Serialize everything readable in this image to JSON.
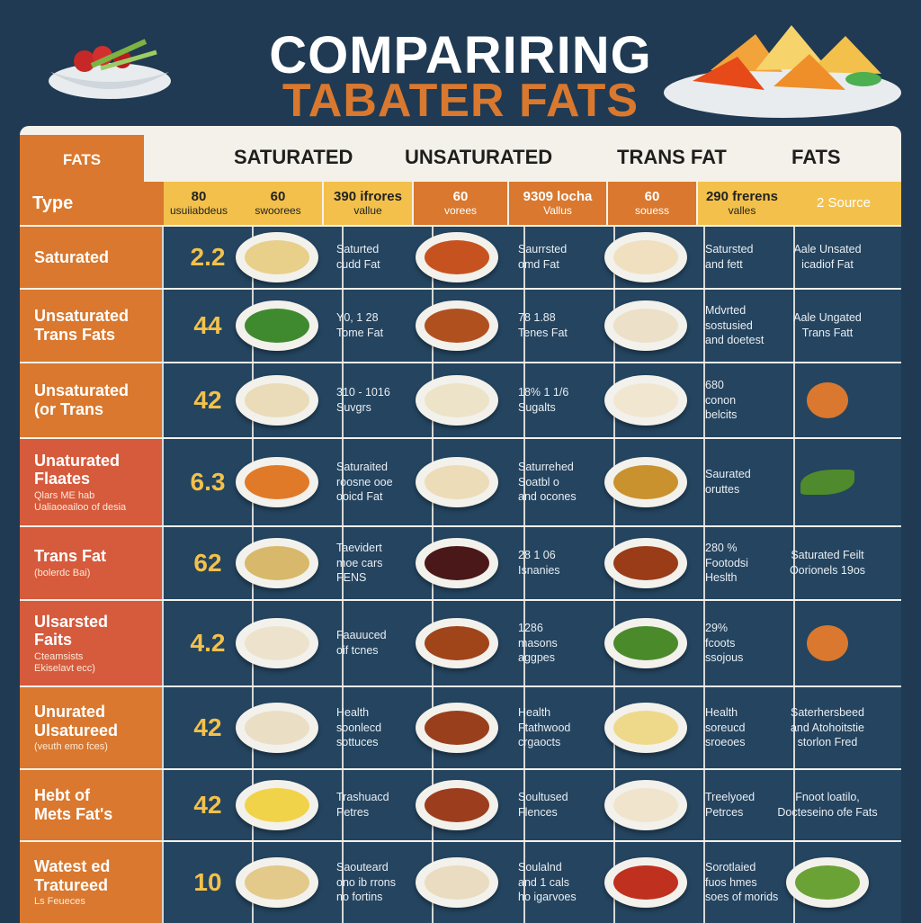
{
  "title": {
    "line1": "COMPARIRING",
    "line2": "TABATER FATS"
  },
  "header": {
    "fats_tab": "FATS",
    "columns": [
      "SATURATED",
      "UNSATURATED",
      "TRANS FAT",
      "FATS"
    ],
    "type_label": "Type",
    "sub": [
      {
        "n": "80",
        "t": "usuiiabdeus"
      },
      {
        "n": "60",
        "t": "swoorees"
      },
      {
        "n": "390 ifrores",
        "t": "vallue"
      },
      {
        "n": "60",
        "t": "vorees"
      },
      {
        "n": "9309 locha",
        "t": "Vallus"
      },
      {
        "n": "60",
        "t": "souess"
      },
      {
        "n": "290 frerens",
        "t": "valles"
      },
      {
        "n": "",
        "t": "2 Source"
      }
    ]
  },
  "colors": {
    "background": "#1f3a52",
    "orange": "#d9782e",
    "red_orange": "#d65a3c",
    "yellow": "#f3c14b",
    "row": "#24445f"
  },
  "rows": [
    {
      "label": "Saturated",
      "sub": "",
      "value": "2.2",
      "c1": "Saturted\ncudd Fat",
      "c2": "Saurrsted\nomd Fat",
      "c3": "Satursted\nand fett",
      "src": "Aale Unsated\nicadiof Fat",
      "color": "#d9782e"
    },
    {
      "label": "Unsaturated\nTrans Fats",
      "sub": "",
      "value": "44",
      "c1": "Y0, 1 28\nTome Fat",
      "c2": "78 1.88\nTenes Fat",
      "c3": "Mdvrted\nsostusied\nand doetest",
      "src": "Aale Ungated\nTrans Fatt",
      "color": "#d9782e"
    },
    {
      "label": "Unsaturated\n(or Trans",
      "sub": "",
      "value": "42",
      "c1": "310 - 1016\nSuvgrs",
      "c2": "18% 1 1/6\nSugalts",
      "c3": "680\nconon\nbelcits",
      "src": "",
      "color": "#d9782e"
    },
    {
      "label": "Unaturated\nFlaates",
      "sub": "Qlars ME hab\nUaliaoeailoo of desia",
      "value": "6.3",
      "c1": "Saturaited\nroosne ooe\nooicd Fat",
      "c2": "Saturrehed\nSoatbl o\nand ocones",
      "c3": "Saurated\noruttes",
      "src": "",
      "color": "#d65a3c"
    },
    {
      "label": "Trans Fat",
      "sub": "(bolerdc Bai)",
      "value": "62",
      "c1": "Taevidert\nmoe cars\nFENS",
      "c2": "28 1 06\nIsnanies",
      "c3": "280 %\nFootodsi\nHeslth",
      "src": "Saturated Feilt\nOorionels 19os",
      "color": "#d65a3c"
    },
    {
      "label": "Ulsarsted\nFaits",
      "sub": "Cteamsists\nEkiselavt ecc)",
      "value": "4.2",
      "c1": "Faauuced\noif tcnes",
      "c2": "1286\nmasons\naggpes",
      "c3": "29%\nfcoots\nssojous",
      "src": "",
      "color": "#d65a3c"
    },
    {
      "label": "Unurated\nUlsatureed",
      "sub": "(veuth emo fces)",
      "value": "42",
      "c1": "Health\nsoonlecd\nsottuces",
      "c2": "Health\nFtathwood\ncrgaocts",
      "c3": "Health\nsoreucd\nsroeoes",
      "src": "Saterhersbeed\nand Atohoitstie\nstorlon Fred",
      "color": "#d9782e"
    },
    {
      "label": "Hebt of\nMets Fat's",
      "sub": "",
      "value": "42",
      "c1": "Trashuacd\nPetres",
      "c2": "Soultused\nFlences",
      "c3": "Treelyoed\nPetrces",
      "src": "Fnoot loatilo,\nDocteseino ofe Fats",
      "color": "#d9782e"
    },
    {
      "label": "Watest ed\nTratureed",
      "sub": "Ls Feueces",
      "value": "10",
      "c1": "Saouteard\nono ib rrons\nno fortins",
      "c2": "Soulalnd\nand 1 cals\nho igarvoes",
      "c3": "Sorotlaied\nfuos hmes\nsoes of morids",
      "src": "",
      "color": "#d9782e"
    }
  ],
  "foods": [
    [
      "#e8cf8a",
      "#c6521f",
      "#f0e0c0"
    ],
    [
      "#3f8a2e",
      "#b0501f",
      "#ece0c8"
    ],
    [
      "#eadcb8",
      "#ede3c8",
      "#f1e7d1"
    ],
    [
      "#e17a28",
      "#ecdcb8",
      "#c9922f"
    ],
    [
      "#d8b86a",
      "#4a1818",
      "#9a3c18"
    ],
    [
      "#ede3cc",
      "#a0441a",
      "#4b8a2b"
    ],
    [
      "#eadfc4",
      "#9a3f1c",
      "#eed98a"
    ],
    [
      "#f1d34a",
      "#9c3d1e",
      "#f0e5cc"
    ],
    [
      "#e3c98a",
      "#eadcc0",
      "#c0301e"
    ]
  ],
  "src_icons": [
    "",
    "",
    "orange",
    "leaf",
    "",
    "orange",
    "",
    "",
    "greens"
  ]
}
